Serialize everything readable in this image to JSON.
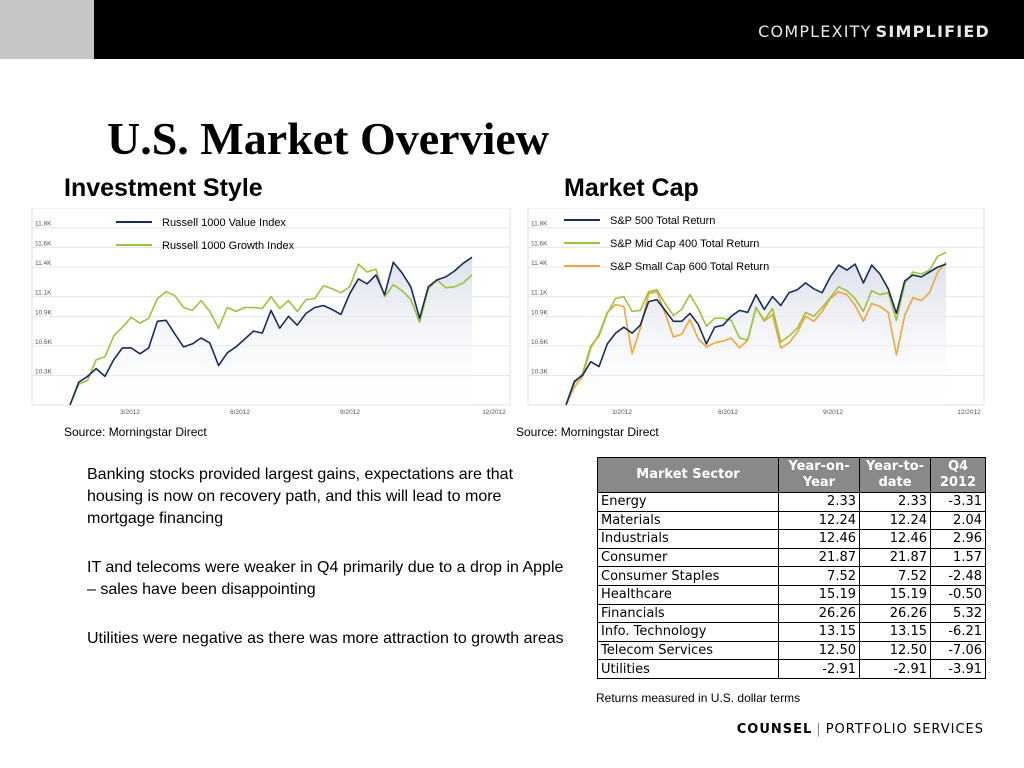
{
  "header": {
    "brand_light": "COMPLEXITY",
    "brand_strong": "SIMPLIFIED"
  },
  "title": "U.S. Market Overview",
  "sections": {
    "style_title": "Investment Style",
    "cap_title": "Market Cap"
  },
  "chart_data": [
    {
      "type": "line",
      "title": "",
      "x_ticks": [
        "3/2012",
        "6/2012",
        "9/2012",
        "12/2012"
      ],
      "y_ticks": [
        "12K",
        "11.8K",
        "11.6K",
        "11.4K",
        "11.1K",
        "10.9K",
        "10.6K",
        "10.3K"
      ],
      "y_tick_values": [
        12000,
        11800,
        11600,
        11400,
        11100,
        10900,
        10600,
        10300
      ],
      "ylim": [
        10000,
        12000
      ],
      "legend_position": "top-left",
      "grid": true,
      "area_fill": true,
      "series": [
        {
          "name": "Russell 1000 Value Index",
          "color": "#172b5d",
          "values": [
            10000,
            10230,
            10290,
            10370,
            10290,
            10460,
            10580,
            10580,
            10520,
            10580,
            10850,
            10860,
            10720,
            10590,
            10620,
            10680,
            10630,
            10400,
            10530,
            10590,
            10670,
            10750,
            10730,
            10960,
            10780,
            10900,
            10810,
            10930,
            10990,
            11010,
            10970,
            10920,
            11130,
            11280,
            11230,
            11320,
            11120,
            11450,
            11340,
            11200,
            10880,
            11200,
            11270,
            11300,
            11360,
            11440,
            11500
          ]
        },
        {
          "name": "Russell 1000 Growth Index",
          "color": "#9ac43a",
          "values": [
            10000,
            10210,
            10250,
            10460,
            10490,
            10700,
            10790,
            10890,
            10830,
            10880,
            11080,
            11150,
            11110,
            10990,
            10960,
            11060,
            10950,
            10780,
            10990,
            10950,
            10990,
            10990,
            10980,
            11100,
            10980,
            11060,
            10950,
            11070,
            11080,
            11210,
            11180,
            11140,
            11200,
            11430,
            11350,
            11380,
            11100,
            11220,
            11160,
            11070,
            10840,
            11180,
            11270,
            11190,
            11200,
            11240,
            11320
          ]
        }
      ]
    },
    {
      "type": "line",
      "title": "",
      "x_ticks": [
        "3/2012",
        "6/2012",
        "9/2012",
        "12/2012"
      ],
      "y_ticks": [
        "12K",
        "11.8K",
        "11.6K",
        "11.4K",
        "11.1K",
        "10.9K",
        "10.6K",
        "10.3K"
      ],
      "y_tick_values": [
        12000,
        11800,
        11600,
        11400,
        11100,
        10900,
        10600,
        10300
      ],
      "ylim": [
        10000,
        12000
      ],
      "legend_position": "top-left",
      "grid": true,
      "area_fill": true,
      "series": [
        {
          "name": "S&P 500 Total Return",
          "color": "#172b5d",
          "values": [
            10000,
            10240,
            10300,
            10440,
            10390,
            10620,
            10730,
            10790,
            10730,
            10810,
            11050,
            11070,
            10960,
            10850,
            10850,
            10930,
            10820,
            10620,
            10790,
            10810,
            10900,
            10960,
            10940,
            11120,
            10970,
            11100,
            11010,
            11140,
            11170,
            11240,
            11180,
            11140,
            11300,
            11420,
            11370,
            11430,
            11240,
            11420,
            11330,
            11180,
            10930,
            11260,
            11320,
            11300,
            11350,
            11400,
            11430
          ]
        },
        {
          "name": "S&P Mid Cap 400 Total Return",
          "color": "#9ac43a",
          "values": [
            10000,
            10220,
            10320,
            10600,
            10700,
            10930,
            11080,
            11100,
            10950,
            10960,
            11150,
            11170,
            11030,
            10910,
            10970,
            11120,
            10980,
            10800,
            10880,
            10880,
            10860,
            10680,
            10660,
            10990,
            10860,
            10980,
            10640,
            10700,
            10780,
            10940,
            10900,
            10990,
            11090,
            11200,
            11160,
            11080,
            10950,
            11160,
            11120,
            11140,
            10860,
            11230,
            11350,
            11330,
            11370,
            11510,
            11550
          ]
        },
        {
          "name": "S&P Small Cap 600 Total Return",
          "color": "#f3a43a",
          "values": [
            10000,
            10180,
            10290,
            10580,
            10720,
            10940,
            11020,
            11000,
            10520,
            10780,
            11130,
            11150,
            10930,
            10690,
            10720,
            10870,
            10670,
            10590,
            10630,
            10650,
            10680,
            10580,
            10660,
            10990,
            10850,
            10920,
            10580,
            10630,
            10740,
            10900,
            10850,
            10950,
            11080,
            11150,
            11120,
            11010,
            10850,
            11030,
            11000,
            10940,
            10510,
            10910,
            11090,
            11060,
            11140,
            11350,
            11450
          ]
        }
      ]
    }
  ],
  "sources": {
    "style": "Source: Morningstar Direct",
    "cap": "Source: Morningstar Direct"
  },
  "bullets": [
    "Banking stocks provided largest gains, expectations are that housing is now on recovery path, and this will lead to more mortgage financing",
    "IT and telecoms were weaker in Q4 primarily due to a drop in Apple – sales have been disappointing",
    "Utilities were negative as there was more attraction to growth areas"
  ],
  "table": {
    "headers": {
      "sector": "Market Sector",
      "yoy_1": "Year-on-",
      "yoy_2": "Year",
      "ytd_1": "Year-to-",
      "ytd_2": "date",
      "q4_1": "Q4",
      "q4_2": "2012"
    },
    "header_bg": "#898989",
    "rows": [
      [
        "Energy",
        "2.33",
        "2.33",
        "-3.31"
      ],
      [
        "Materials",
        "12.24",
        "12.24",
        "2.04"
      ],
      [
        "Industrials",
        "12.46",
        "12.46",
        "2.96"
      ],
      [
        "Consumer",
        "21.87",
        "21.87",
        "1.57"
      ],
      [
        "Consumer Staples",
        "7.52",
        "7.52",
        "-2.48"
      ],
      [
        "Healthcare",
        "15.19",
        "15.19",
        "-0.50"
      ],
      [
        "Financials",
        "26.26",
        "26.26",
        "5.32"
      ],
      [
        "Info. Technology",
        "13.15",
        "13.15",
        "-6.21"
      ],
      [
        "Telecom Services",
        "12.50",
        "12.50",
        "-7.06"
      ],
      [
        "Utilities",
        "-2.91",
        "-2.91",
        "-3.91"
      ]
    ],
    "note": "Returns measured in U.S. dollar terms"
  },
  "footer": {
    "brand_strong": "COUNSEL",
    "separator": "|",
    "brand_light": "PORTFOLIO SERVICES"
  }
}
